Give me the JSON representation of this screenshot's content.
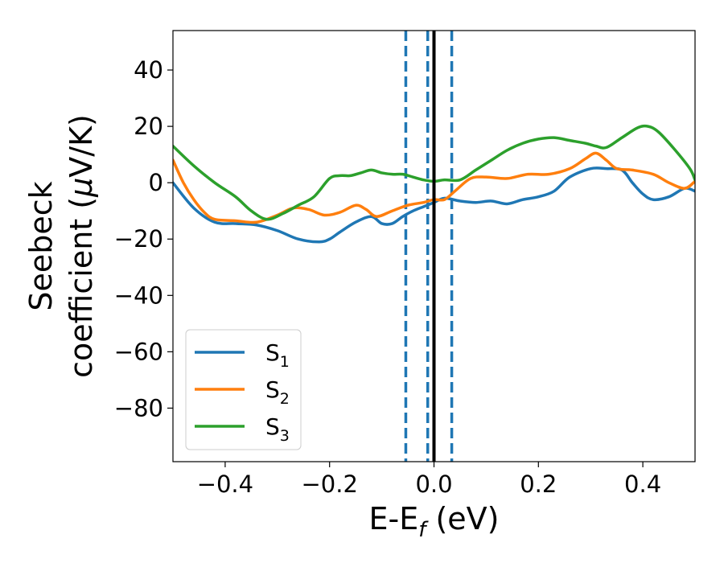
{
  "chart_data": {
    "type": "line",
    "xlabel": {
      "main": "E-E",
      "sub": "f",
      "unit": " (eV)"
    },
    "ylabel": {
      "line1": "Seebeck",
      "line2_pre": "coefficient  (",
      "mu": "μ",
      "line2_post": "V/K)"
    },
    "xlim": [
      -0.5,
      0.5
    ],
    "ylim": [
      -99,
      54
    ],
    "xticks": [
      -0.4,
      -0.2,
      0.0,
      0.2,
      0.4
    ],
    "xtick_labels": [
      "−0.4",
      "−0.2",
      "0.0",
      "0.2",
      "0.4"
    ],
    "yticks": [
      -80,
      -60,
      -40,
      -20,
      0,
      20,
      40
    ],
    "ytick_labels": [
      "−80",
      "−60",
      "−40",
      "−20",
      "0",
      "20",
      "40"
    ],
    "grid": false,
    "legend_position": "lower-left",
    "vlines": [
      {
        "x": 0.0,
        "style": "solid",
        "color": "#000000"
      },
      {
        "x": -0.054,
        "style": "dashed",
        "color": "#1f77b4"
      },
      {
        "x": -0.012,
        "style": "dashed",
        "color": "#1f77b4"
      },
      {
        "x": 0.034,
        "style": "dashed",
        "color": "#1f77b4"
      }
    ],
    "series": [
      {
        "name": "S",
        "sub": "1",
        "color": "#1f77b4",
        "x": [
          -0.5,
          -0.46,
          -0.42,
          -0.38,
          -0.34,
          -0.3,
          -0.26,
          -0.22,
          -0.2,
          -0.18,
          -0.15,
          -0.12,
          -0.1,
          -0.08,
          -0.06,
          -0.04,
          -0.02,
          0.0,
          0.02,
          0.05,
          0.08,
          0.11,
          0.14,
          0.17,
          0.2,
          0.23,
          0.26,
          0.3,
          0.33,
          0.36,
          0.38,
          0.4,
          0.42,
          0.45,
          0.48,
          0.5
        ],
        "y": [
          0,
          -9,
          -14,
          -14.5,
          -15,
          -17,
          -20,
          -21,
          -20,
          -17.5,
          -14,
          -12,
          -14.5,
          -14.5,
          -12,
          -10,
          -8.5,
          -7,
          -5.5,
          -6.5,
          -7,
          -6.5,
          -7.5,
          -6,
          -5,
          -3,
          2,
          5,
          5,
          4.5,
          0,
          -4,
          -6,
          -5,
          -2,
          -3
        ]
      },
      {
        "name": "S",
        "sub": "2",
        "color": "#ff7f0e",
        "x": [
          -0.5,
          -0.48,
          -0.46,
          -0.44,
          -0.42,
          -0.38,
          -0.34,
          -0.3,
          -0.27,
          -0.24,
          -0.21,
          -0.18,
          -0.15,
          -0.13,
          -0.11,
          -0.08,
          -0.05,
          -0.02,
          0.0,
          0.02,
          0.04,
          0.07,
          0.1,
          0.14,
          0.18,
          0.22,
          0.26,
          0.29,
          0.31,
          0.33,
          0.35,
          0.38,
          0.42,
          0.45,
          0.48,
          0.5
        ],
        "y": [
          8,
          0,
          -6,
          -10.5,
          -13,
          -13.5,
          -14,
          -11.5,
          -9,
          -9.5,
          -11.5,
          -10.5,
          -8,
          -9.5,
          -12,
          -10,
          -8,
          -7,
          -6,
          -6,
          -3,
          1.5,
          2,
          1.5,
          3,
          3,
          5,
          8.5,
          10.5,
          8,
          5,
          4.5,
          3,
          0,
          -2,
          0.5
        ]
      },
      {
        "name": "S",
        "sub": "3",
        "color": "#2ca02c",
        "x": [
          -0.5,
          -0.46,
          -0.42,
          -0.38,
          -0.35,
          -0.32,
          -0.29,
          -0.26,
          -0.23,
          -0.2,
          -0.18,
          -0.16,
          -0.14,
          -0.12,
          -0.1,
          -0.08,
          -0.06,
          -0.04,
          -0.02,
          0.0,
          0.02,
          0.05,
          0.08,
          0.11,
          0.14,
          0.17,
          0.2,
          0.23,
          0.26,
          0.29,
          0.31,
          0.33,
          0.36,
          0.39,
          0.41,
          0.43,
          0.46,
          0.49,
          0.5
        ],
        "y": [
          13,
          6,
          0,
          -5,
          -10,
          -13,
          -11,
          -8,
          -5,
          1.5,
          2.5,
          2.5,
          3.5,
          4.5,
          3.5,
          3,
          3,
          2,
          1,
          0.5,
          1,
          1,
          4.5,
          8,
          11.5,
          14,
          15.5,
          16,
          15,
          14,
          13,
          12.5,
          16,
          19.5,
          20,
          18,
          12,
          5,
          1
        ]
      }
    ]
  }
}
